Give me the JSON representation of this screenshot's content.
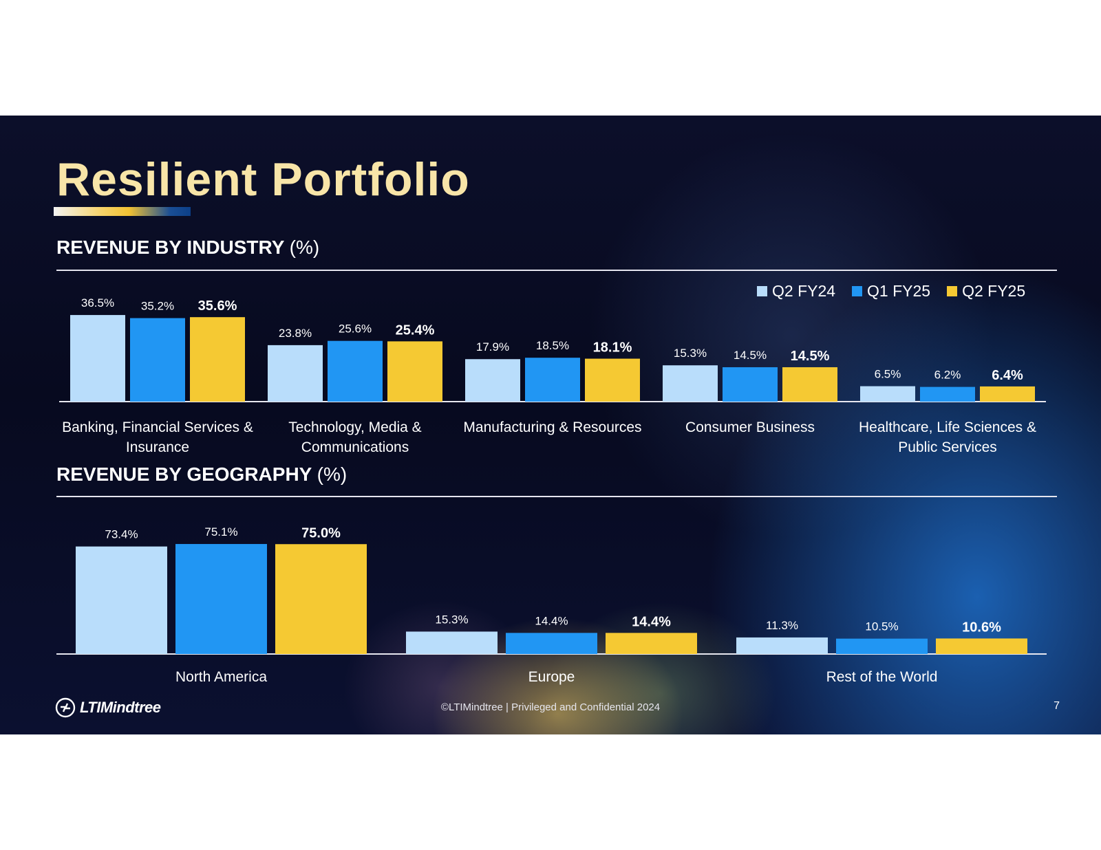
{
  "slide": {
    "title": "Resilient Portfolio",
    "page_number": "7",
    "footer": "©LTIMindtree | Privileged and Confidential 2024",
    "logo_text": "LTIMindtree"
  },
  "sections": {
    "industry": {
      "title": "REVENUE BY INDUSTRY",
      "unit": "(%)"
    },
    "geography": {
      "title": "REVENUE BY GEOGRAPHY",
      "unit": "(%)"
    }
  },
  "legend": [
    {
      "label": "Q2 FY24",
      "color": "#b9ddfb"
    },
    {
      "label": "Q1 FY25",
      "color": "#2196f3"
    },
    {
      "label": "Q2 FY25",
      "color": "#f5c933"
    }
  ],
  "chart_data": [
    {
      "type": "bar",
      "title": "REVENUE BY INDUSTRY (%)",
      "categories": [
        [
          "Banking, Financial Services &",
          "Insurance"
        ],
        [
          "Technology, Media &",
          "Communications"
        ],
        [
          "Manufacturing & Resources"
        ],
        [
          "Consumer Business"
        ],
        [
          "Healthcare, Life Sciences &",
          "Public Services"
        ]
      ],
      "series": [
        {
          "name": "Q2 FY24",
          "values": [
            36.5,
            23.8,
            17.9,
            15.3,
            6.5
          ],
          "labels": [
            "36.5%",
            "23.8%",
            "17.9%",
            "15.3%",
            "6.5%"
          ],
          "color": "#b9ddfb"
        },
        {
          "name": "Q1 FY25",
          "values": [
            35.2,
            25.6,
            18.5,
            14.5,
            6.2
          ],
          "labels": [
            "35.2%",
            "25.6%",
            "18.5%",
            "14.5%",
            "6.2%"
          ],
          "color": "#2196f3"
        },
        {
          "name": "Q2 FY25",
          "values": [
            35.6,
            25.4,
            18.1,
            14.5,
            6.4
          ],
          "labels": [
            "35.6%",
            "25.4%",
            "18.1%",
            "14.5%",
            "6.4%"
          ],
          "color": "#f5c933",
          "bold_labels": true
        }
      ],
      "legend": "top-right"
    },
    {
      "type": "bar",
      "title": "REVENUE BY GEOGRAPHY (%)",
      "categories": [
        [
          "North America"
        ],
        [
          "Europe"
        ],
        [
          "Rest of the World"
        ]
      ],
      "series": [
        {
          "name": "Q2 FY24",
          "values": [
            73.4,
            15.3,
            11.3
          ],
          "labels": [
            "73.4%",
            "15.3%",
            "11.3%"
          ],
          "color": "#b9ddfb"
        },
        {
          "name": "Q1 FY25",
          "values": [
            75.1,
            14.4,
            10.5
          ],
          "labels": [
            "75.1%",
            "14.4%",
            "10.5%"
          ],
          "color": "#2196f3"
        },
        {
          "name": "Q2 FY25",
          "values": [
            75.0,
            14.4,
            10.6
          ],
          "labels": [
            "75.0%",
            "14.4%",
            "10.6%"
          ],
          "color": "#f5c933",
          "bold_labels": true
        }
      ]
    }
  ]
}
